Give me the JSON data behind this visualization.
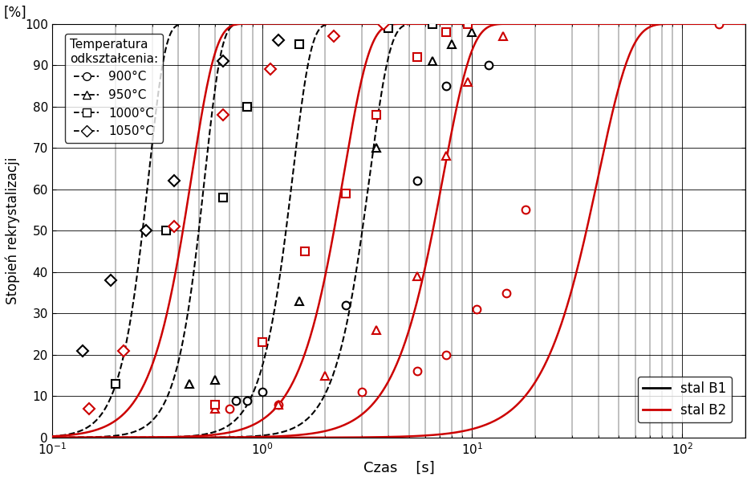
{
  "xlabel": "Czas    [s]",
  "ylabel": "Stopień rekrystalizacji",
  "ylabel2": "[%]",
  "xlim": [
    0.1,
    200
  ],
  "ylim": [
    0,
    100
  ],
  "background_color": "#ffffff",
  "B1_color": "#000000",
  "B2_color": "#cc0000",
  "B1_curves": [
    {
      "temp": 900,
      "marker": "o",
      "points_x": [
        0.75,
        0.85,
        1.0,
        2.5,
        5.5,
        7.5,
        12.0
      ],
      "points_y": [
        9,
        9,
        11,
        32,
        62,
        85,
        90
      ],
      "t50": 3.0,
      "n": 4.5
    },
    {
      "temp": 950,
      "marker": "^",
      "points_x": [
        0.45,
        0.6,
        1.5,
        3.5,
        6.5,
        8.0,
        10.0
      ],
      "points_y": [
        13,
        14,
        33,
        70,
        91,
        95,
        98
      ],
      "t50": 1.3,
      "n": 5.0
    },
    {
      "temp": 1000,
      "marker": "s",
      "points_x": [
        0.2,
        0.35,
        0.65,
        0.85,
        1.5,
        4.0,
        6.5
      ],
      "points_y": [
        13,
        50,
        58,
        80,
        95,
        99,
        100
      ],
      "t50": 0.5,
      "n": 5.5
    },
    {
      "temp": 1050,
      "marker": "D",
      "points_x": [
        0.14,
        0.19,
        0.28,
        0.38,
        0.65,
        1.2
      ],
      "points_y": [
        21,
        38,
        50,
        62,
        91,
        96
      ],
      "t50": 0.27,
      "n": 5.5
    }
  ],
  "B2_curves": [
    {
      "temp": 900,
      "marker": "o",
      "points_x": [
        0.7,
        1.2,
        3.0,
        5.5,
        7.5,
        10.5,
        14.5,
        18.0,
        150.0
      ],
      "points_y": [
        7,
        8,
        11,
        16,
        20,
        31,
        35,
        55,
        100
      ],
      "t50": 35.0,
      "n": 2.8
    },
    {
      "temp": 950,
      "marker": "^",
      "points_x": [
        0.6,
        1.2,
        2.0,
        3.5,
        5.5,
        7.5,
        9.5,
        14.0
      ],
      "points_y": [
        7,
        8,
        15,
        26,
        39,
        68,
        86,
        97
      ],
      "t50": 6.5,
      "n": 3.2
    },
    {
      "temp": 1000,
      "marker": "s",
      "points_x": [
        0.6,
        1.0,
        1.6,
        2.5,
        3.5,
        5.5,
        7.5,
        9.5
      ],
      "points_y": [
        8,
        23,
        45,
        59,
        78,
        92,
        98,
        100
      ],
      "t50": 2.2,
      "n": 3.5
    },
    {
      "temp": 1050,
      "marker": "D",
      "points_x": [
        0.15,
        0.22,
        0.38,
        0.65,
        1.1,
        2.2,
        3.8
      ],
      "points_y": [
        7,
        21,
        51,
        78,
        89,
        97,
        100
      ],
      "t50": 0.42,
      "n": 3.8
    }
  ]
}
